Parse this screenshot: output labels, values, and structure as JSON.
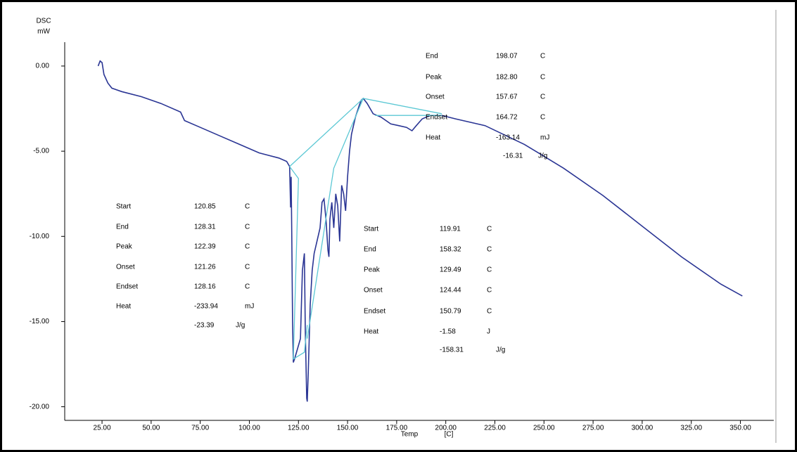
{
  "chart_data": {
    "type": "line",
    "ylabel": [
      "DSC",
      "mW"
    ],
    "xlabel": [
      "Temp",
      "[C]"
    ],
    "xlim": [
      6,
      367
    ],
    "ylim": [
      -20.8,
      1.4
    ],
    "xticks": [
      {
        "value": 25,
        "label": "25.00"
      },
      {
        "value": 50,
        "label": "50.00"
      },
      {
        "value": 75,
        "label": "75.00"
      },
      {
        "value": 100,
        "label": "100.00"
      },
      {
        "value": 125,
        "label": "125.00"
      },
      {
        "value": 150,
        "label": "150.00"
      },
      {
        "value": 175,
        "label": "175.00"
      },
      {
        "value": 200,
        "label": "200.00"
      },
      {
        "value": 225,
        "label": "225.00"
      },
      {
        "value": 250,
        "label": "250.00"
      },
      {
        "value": 275,
        "label": "275.00"
      },
      {
        "value": 300,
        "label": "300.00"
      },
      {
        "value": 325,
        "label": "325.00"
      },
      {
        "value": 350,
        "label": "350.00"
      }
    ],
    "yticks": [
      {
        "value": 0,
        "label": "0.00"
      },
      {
        "value": -5,
        "label": "-5.00"
      },
      {
        "value": -10,
        "label": "-10.00"
      },
      {
        "value": -15,
        "label": "-15.00"
      },
      {
        "value": -20,
        "label": "-20.00"
      }
    ],
    "series": [
      {
        "color": "#2a3594",
        "x": [
          23,
          24,
          25,
          26,
          28,
          30,
          35,
          45,
          55,
          65,
          67,
          75,
          85,
          95,
          105,
          115,
          119,
          120.5,
          121,
          121.3,
          121.6,
          122,
          122.4,
          123,
          124,
          126,
          127,
          128,
          128.5,
          129.2,
          129.5,
          130,
          131,
          132,
          133,
          134,
          136,
          137,
          138,
          139,
          140,
          140.5,
          141,
          142,
          143,
          144,
          145,
          146,
          147,
          148,
          149,
          150,
          151,
          152,
          154,
          156,
          157,
          158,
          160,
          163,
          167,
          172,
          176,
          180,
          182.8,
          185,
          188,
          192,
          198,
          205,
          220,
          240,
          260,
          280,
          300,
          320,
          340,
          351
        ],
        "values": [
          0.0,
          0.3,
          0.2,
          -0.5,
          -1.0,
          -1.3,
          -1.5,
          -1.8,
          -2.2,
          -2.7,
          -3.2,
          -3.6,
          -4.1,
          -4.6,
          -5.1,
          -5.4,
          -5.6,
          -5.9,
          -8.3,
          -6.5,
          -10,
          -15,
          -17.4,
          -17.2,
          -16.8,
          -16.0,
          -12,
          -11,
          -15.5,
          -19.5,
          -19.7,
          -18,
          -14,
          -12,
          -11,
          -10.5,
          -9.5,
          -8,
          -7.8,
          -9,
          -10.8,
          -11.2,
          -9,
          -8,
          -9.5,
          -7.5,
          -8.2,
          -10.3,
          -7,
          -7.5,
          -8.5,
          -6.5,
          -5,
          -4,
          -3,
          -2.3,
          -2,
          -1.9,
          -2.2,
          -2.8,
          -3.0,
          -3.4,
          -3.5,
          -3.6,
          -3.8,
          -3.5,
          -3.1,
          -2.9,
          -2.9,
          -3.1,
          -3.5,
          -4.6,
          -6.0,
          -7.6,
          -9.4,
          -11.2,
          -12.8,
          -13.5
        ]
      },
      {
        "color": "#5cc8d4",
        "x": [
          120.5,
          158,
          198,
          null,
          164,
          198,
          null,
          120.5,
          125,
          122.4,
          128,
          129.5,
          null,
          158,
          143,
          129.5
        ],
        "values": [
          -5.9,
          -1.9,
          -2.8,
          null,
          -2.9,
          -2.9,
          null,
          -5.9,
          -6.6,
          -17.2,
          -16.8,
          -15.2,
          null,
          -1.9,
          -6,
          -16
        ]
      }
    ],
    "annotations": [
      {
        "rows": [
          {
            "label": "End",
            "value": "198.07",
            "unit": "C"
          },
          {
            "label": "Peak",
            "value": "182.80",
            "unit": "C"
          },
          {
            "label": "Onset",
            "value": "157.67",
            "unit": "C"
          },
          {
            "label": "Endset",
            "value": "164.72",
            "unit": "C"
          },
          {
            "label": "Heat",
            "value": "-163.14",
            "unit": "mJ"
          }
        ],
        "extra": {
          "value": "-16.31",
          "unit": "J/g"
        }
      },
      {
        "rows": [
          {
            "label": "Start",
            "value": "120.85",
            "unit": "C"
          },
          {
            "label": "End",
            "value": "128.31",
            "unit": "C"
          },
          {
            "label": "Peak",
            "value": "122.39",
            "unit": "C"
          },
          {
            "label": "Onset",
            "value": "121.26",
            "unit": "C"
          },
          {
            "label": "Endset",
            "value": "128.16",
            "unit": "C"
          },
          {
            "label": "Heat",
            "value": "-233.94",
            "unit": "mJ"
          }
        ],
        "extra": {
          "value": "-23.39",
          "unit": "J/g"
        }
      },
      {
        "rows": [
          {
            "label": "Start",
            "value": "119.91",
            "unit": "C"
          },
          {
            "label": "End",
            "value": "158.32",
            "unit": "C"
          },
          {
            "label": "Peak",
            "value": "129.49",
            "unit": "C"
          },
          {
            "label": "Onset",
            "value": "124.44",
            "unit": "C"
          },
          {
            "label": "Endset",
            "value": "150.79",
            "unit": "C"
          },
          {
            "label": "Heat",
            "value": "-1.58",
            "unit": "J"
          }
        ],
        "extra": {
          "value": "-158.31",
          "unit": "J/g"
        }
      }
    ]
  }
}
